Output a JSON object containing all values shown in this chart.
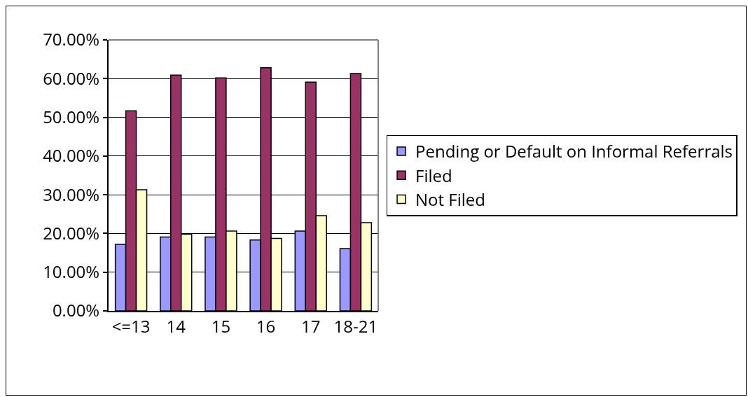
{
  "chart_data": {
    "type": "bar",
    "categories": [
      "<=13",
      "14",
      "15",
      "16",
      "17",
      "18-21"
    ],
    "series": [
      {
        "name": "Pending or Default on Informal Referrals",
        "color": "#9999ff",
        "values": [
          17.2,
          19.1,
          19.1,
          18.3,
          20.6,
          16.1
        ]
      },
      {
        "name": "Filed",
        "color": "#993366",
        "values": [
          51.7,
          60.9,
          60.2,
          62.8,
          59.1,
          61.3
        ]
      },
      {
        "name": "Not Filed",
        "color": "#ffffcc",
        "values": [
          31.3,
          19.8,
          20.6,
          18.7,
          24.6,
          22.8
        ]
      }
    ],
    "ylim": [
      0,
      70
    ],
    "yticks": [
      {
        "value": 0,
        "label": "0.00%"
      },
      {
        "value": 10,
        "label": "10.00%"
      },
      {
        "value": 20,
        "label": "20.00%"
      },
      {
        "value": 30,
        "label": "30.00%"
      },
      {
        "value": 40,
        "label": "40.00%"
      },
      {
        "value": 50,
        "label": "50.00%"
      },
      {
        "value": 60,
        "label": "60.00%"
      },
      {
        "value": 70,
        "label": "70.00%"
      }
    ],
    "grid": "y",
    "legend": "right"
  }
}
